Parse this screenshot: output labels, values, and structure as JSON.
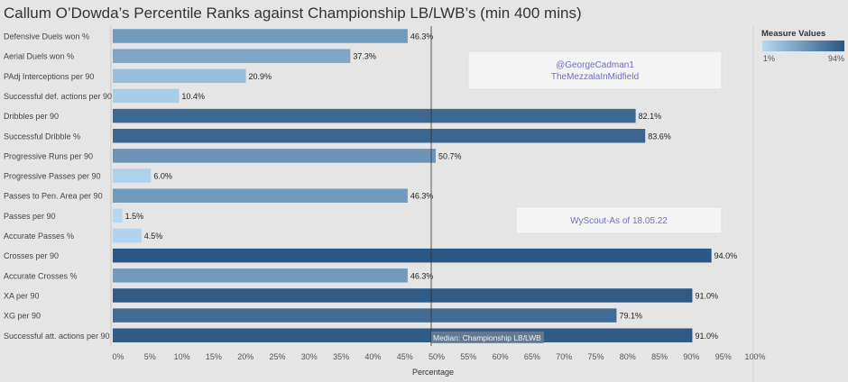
{
  "title": "Callum O’Dowda’s Percentile Ranks against Championship LB/LWB’s (min 400 mins)",
  "chart_data": {
    "type": "bar",
    "orientation": "horizontal",
    "categories": [
      "Defensive Duels won %",
      "Aerial Duels won %",
      "PAdj Interceptions per 90",
      "Successful def. actions per 90",
      "Dribbles per 90",
      "Successful Dribble %",
      "Progressive Runs per 90",
      "Progressive Passes per 90",
      "Passes to Pen. Area per 90",
      "Passes per 90",
      "Accurate Passes %",
      "Crosses per 90",
      "Accurate Crosses %",
      "XA per 90",
      "XG per 90",
      "Successful att. actions per 90"
    ],
    "values": [
      46.3,
      37.3,
      20.9,
      10.4,
      82.1,
      83.6,
      50.7,
      6.0,
      46.3,
      1.5,
      4.5,
      94.0,
      46.3,
      91.0,
      79.1,
      91.0
    ],
    "value_labels": [
      "46.3%",
      "37.3%",
      "20.9%",
      "10.4%",
      "82.1%",
      "83.6%",
      "50.7%",
      "6.0%",
      "46.3%",
      "1.5%",
      "4.5%",
      "94.0%",
      "46.3%",
      "91.0%",
      "79.1%",
      "91.0%"
    ],
    "xlabel": "Percentage",
    "xlim": [
      0,
      100
    ],
    "x_ticks": [
      "0%",
      "5%",
      "10%",
      "15%",
      "20%",
      "25%",
      "30%",
      "35%",
      "40%",
      "45%",
      "50%",
      "55%",
      "60%",
      "65%",
      "70%",
      "75%",
      "80%",
      "85%",
      "90%",
      "95%",
      "100%"
    ],
    "reference_line": {
      "value": 50,
      "label": "Median: Championship LB/LWB"
    },
    "color_legend": {
      "title": "Measure Values",
      "min_label": "1%",
      "max_label": "94%",
      "min": 1,
      "max": 94
    },
    "color_scale": {
      "low": "#b7d9f2",
      "high": "#2a5783"
    },
    "annotations": [
      {
        "lines": [
          "@GeorgeCadman1",
          "TheMezzalaInMidfield"
        ]
      },
      {
        "lines": [
          "WyScout-As of 18.05.22"
        ]
      }
    ],
    "grid": false
  }
}
